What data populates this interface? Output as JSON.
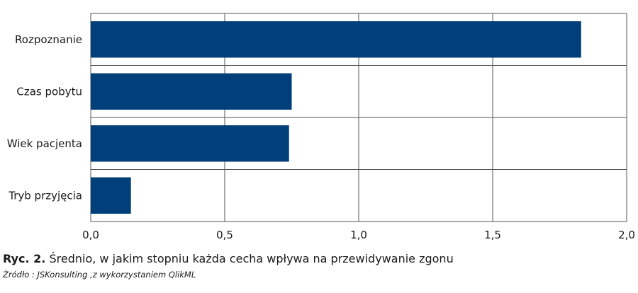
{
  "chart_data": {
    "type": "bar",
    "orientation": "horizontal",
    "categories": [
      "Rozpoznanie",
      "Czas pobytu",
      "Wiek pacjenta",
      "Tryb przyjęcia"
    ],
    "values": [
      1.83,
      0.75,
      0.74,
      0.15
    ],
    "xlim": [
      0,
      2.0
    ],
    "xticks": [
      0,
      0.5,
      1.0,
      1.5,
      2.0
    ],
    "xtick_labels": [
      "0,0",
      "0,5",
      "1,0",
      "1,5",
      "2,0"
    ],
    "bar_color": "#003f7a",
    "grid": true
  },
  "caption": {
    "label": "Ryc. 2.",
    "text": "Średnio, w jakim stopniu każda cecha wpływa na przewidywanie zgonu"
  },
  "source": "Źródło : JSKonsulting ,z wykorzystaniem QlikML"
}
